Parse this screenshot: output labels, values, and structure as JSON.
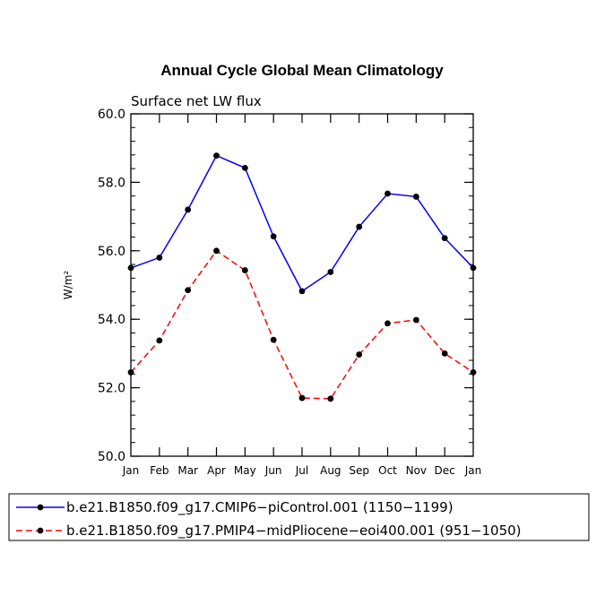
{
  "chart_data": {
    "type": "line",
    "title": "Annual Cycle Global Mean Climatology",
    "subtitle": "Surface net LW flux",
    "xlabel": "",
    "ylabel": "W/m²",
    "ylim": [
      50.0,
      60.0
    ],
    "yticks": [
      "50.0",
      "52.0",
      "54.0",
      "56.0",
      "58.0",
      "60.0"
    ],
    "yminor_step": 0.4,
    "categories": [
      "Jan",
      "Feb",
      "Mar",
      "Apr",
      "May",
      "Jun",
      "Jul",
      "Aug",
      "Sep",
      "Oct",
      "Nov",
      "Dec",
      "Jan"
    ],
    "series": [
      {
        "name": "b.e21.B1850.f09_g17.CMIP6−piControl.001 (1150−1199)",
        "color": "#0000ff",
        "dash": "solid",
        "values": [
          55.5,
          55.8,
          57.2,
          58.78,
          58.42,
          56.42,
          54.82,
          55.38,
          56.7,
          57.67,
          57.58,
          56.37,
          55.5
        ]
      },
      {
        "name": "b.e21.B1850.f09_g17.PMIP4−midPliocene−eoi400.001 (951−1050)",
        "color": "#ff0000",
        "dash": "dashed",
        "values": [
          52.45,
          53.38,
          54.85,
          56.0,
          55.43,
          53.4,
          51.7,
          51.68,
          52.97,
          53.88,
          53.98,
          53.0,
          52.45
        ]
      }
    ],
    "grid": false,
    "legend_position": "bottom"
  }
}
